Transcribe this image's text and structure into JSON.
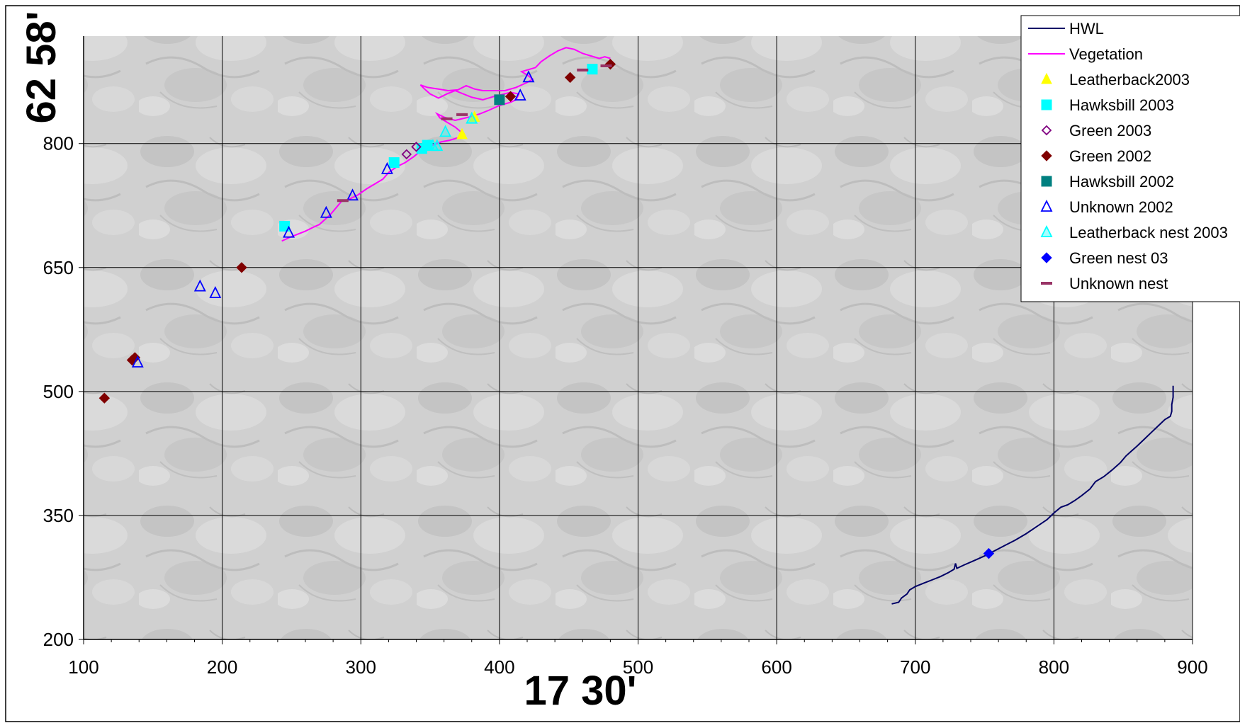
{
  "chart_data": {
    "type": "scatter",
    "xlabel": "17 30'",
    "ylabel": "62 58'",
    "xlim": [
      100,
      900
    ],
    "ylim": [
      200,
      930
    ],
    "x_ticks": [
      100,
      200,
      300,
      400,
      500,
      600,
      700,
      800,
      900
    ],
    "x_tick_labels": [
      "100",
      "200",
      "300",
      "400",
      "500",
      "600",
      "700",
      "800",
      "900"
    ],
    "y_ticks": [
      200,
      350,
      500,
      650,
      800
    ],
    "y_tick_labels": [
      "200",
      "350",
      "500",
      "650",
      "800"
    ],
    "grid": true,
    "legend_position": "top-right",
    "series": [
      {
        "name": "HWL",
        "kind": "line",
        "color": "#000066",
        "points": [
          [
            683,
            243
          ],
          [
            688,
            245
          ],
          [
            690,
            250
          ],
          [
            694,
            255
          ],
          [
            696,
            260
          ],
          [
            700,
            264
          ],
          [
            706,
            268
          ],
          [
            712,
            272
          ],
          [
            718,
            276
          ],
          [
            724,
            281
          ],
          [
            728,
            285
          ],
          [
            729,
            292
          ],
          [
            730,
            286
          ],
          [
            735,
            290
          ],
          [
            742,
            295
          ],
          [
            750,
            301
          ],
          [
            758,
            308
          ],
          [
            765,
            314
          ],
          [
            772,
            320
          ],
          [
            780,
            328
          ],
          [
            788,
            337
          ],
          [
            795,
            345
          ],
          [
            800,
            353
          ],
          [
            805,
            360
          ],
          [
            810,
            363
          ],
          [
            815,
            368
          ],
          [
            820,
            374
          ],
          [
            826,
            382
          ],
          [
            830,
            391
          ],
          [
            836,
            397
          ],
          [
            842,
            405
          ],
          [
            848,
            414
          ],
          [
            852,
            422
          ],
          [
            856,
            428
          ],
          [
            860,
            434
          ],
          [
            865,
            442
          ],
          [
            870,
            450
          ],
          [
            875,
            458
          ],
          [
            880,
            466
          ],
          [
            884,
            470
          ],
          [
            885,
            476
          ],
          [
            885,
            484
          ],
          [
            886,
            493
          ],
          [
            886,
            507
          ]
        ]
      },
      {
        "name": "Vegetation",
        "kind": "line",
        "color": "#FF00FF",
        "points": [
          [
            243,
            682
          ],
          [
            248,
            686
          ],
          [
            254,
            690
          ],
          [
            260,
            694
          ],
          [
            266,
            699
          ],
          [
            270,
            702
          ],
          [
            274,
            708
          ],
          [
            278,
            714
          ],
          [
            282,
            722
          ],
          [
            286,
            730
          ],
          [
            292,
            733
          ],
          [
            298,
            738
          ],
          [
            304,
            745
          ],
          [
            310,
            751
          ],
          [
            316,
            757
          ],
          [
            320,
            765
          ],
          [
            326,
            772
          ],
          [
            332,
            777
          ],
          [
            338,
            784
          ],
          [
            344,
            792
          ],
          [
            350,
            797
          ],
          [
            358,
            802
          ],
          [
            364,
            804
          ],
          [
            370,
            807
          ],
          [
            373,
            813
          ],
          [
            368,
            820
          ],
          [
            362,
            826
          ],
          [
            357,
            831
          ],
          [
            355,
            836
          ],
          [
            360,
            832
          ],
          [
            368,
            828
          ],
          [
            378,
            832
          ],
          [
            386,
            836
          ],
          [
            392,
            840
          ],
          [
            400,
            846
          ],
          [
            408,
            850
          ],
          [
            412,
            853
          ],
          [
            414,
            860
          ],
          [
            408,
            862
          ],
          [
            396,
            857
          ],
          [
            388,
            853
          ],
          [
            380,
            856
          ],
          [
            374,
            860
          ],
          [
            368,
            864
          ],
          [
            362,
            860
          ],
          [
            356,
            855
          ],
          [
            350,
            860
          ],
          [
            346,
            866
          ],
          [
            343,
            871
          ],
          [
            348,
            868
          ],
          [
            356,
            866
          ],
          [
            363,
            864
          ],
          [
            370,
            865
          ],
          [
            376,
            870
          ],
          [
            382,
            866
          ],
          [
            388,
            864
          ],
          [
            396,
            864
          ],
          [
            404,
            864
          ],
          [
            412,
            868
          ],
          [
            420,
            874
          ],
          [
            424,
            878
          ],
          [
            420,
            883
          ],
          [
            416,
            887
          ],
          [
            422,
            890
          ],
          [
            426,
            892
          ],
          [
            430,
            899
          ],
          [
            436,
            906
          ],
          [
            442,
            912
          ],
          [
            448,
            916
          ],
          [
            454,
            914
          ],
          [
            460,
            909
          ],
          [
            466,
            906
          ],
          [
            472,
            903
          ],
          [
            476,
            905
          ],
          [
            480,
            903
          ]
        ]
      },
      {
        "name": "Leatherback2003",
        "kind": "marker",
        "marker": "triangle-filled",
        "color": "#FFFF00",
        "points": [
          [
            373,
            811
          ],
          [
            382,
            832
          ]
        ]
      },
      {
        "name": "Hawksbill 2003",
        "kind": "marker",
        "marker": "square-filled",
        "color": "#00FFFF",
        "points": [
          [
            245,
            700
          ],
          [
            324,
            777
          ],
          [
            344,
            794
          ],
          [
            348,
            798
          ],
          [
            467,
            890
          ]
        ]
      },
      {
        "name": "Green 2003",
        "kind": "marker",
        "marker": "diamond-open",
        "color": "#800080",
        "points": [
          [
            333,
            787
          ],
          [
            340,
            796
          ]
        ]
      },
      {
        "name": "Green 2002",
        "kind": "marker",
        "marker": "diamond-filled",
        "color": "#800000",
        "points": [
          [
            115,
            492
          ],
          [
            135,
            538
          ],
          [
            137,
            541
          ],
          [
            214,
            650
          ],
          [
            408,
            857
          ],
          [
            451,
            880
          ],
          [
            480,
            896
          ]
        ]
      },
      {
        "name": "Hawksbill 2002",
        "kind": "marker",
        "marker": "square-filled",
        "color": "#008080",
        "points": [
          [
            400,
            853
          ]
        ]
      },
      {
        "name": "Unknown 2002",
        "kind": "marker",
        "marker": "triangle-open",
        "color": "#0000FF",
        "points": [
          [
            139,
            535
          ],
          [
            184,
            627
          ],
          [
            195,
            619
          ],
          [
            248,
            692
          ],
          [
            275,
            716
          ],
          [
            294,
            737
          ],
          [
            319,
            769
          ],
          [
            415,
            858
          ],
          [
            421,
            880
          ]
        ]
      },
      {
        "name": "Leatherback nest 2003",
        "kind": "marker",
        "marker": "triangle-open-fill",
        "color": "#00FFFF",
        "stroke": "#0000FF",
        "points": [
          [
            352,
            797
          ],
          [
            355,
            797
          ],
          [
            361,
            814
          ],
          [
            380,
            830
          ]
        ]
      },
      {
        "name": "Green nest 03",
        "kind": "marker",
        "marker": "diamond-filled",
        "color": "#0000FF",
        "points": [
          [
            753,
            304
          ]
        ]
      },
      {
        "name": "Unknown nest",
        "kind": "marker",
        "marker": "dash",
        "color": "#993366",
        "points": [
          [
            287,
            731
          ],
          [
            362,
            830
          ],
          [
            373,
            835
          ],
          [
            460,
            889
          ],
          [
            477,
            894
          ]
        ]
      }
    ]
  }
}
